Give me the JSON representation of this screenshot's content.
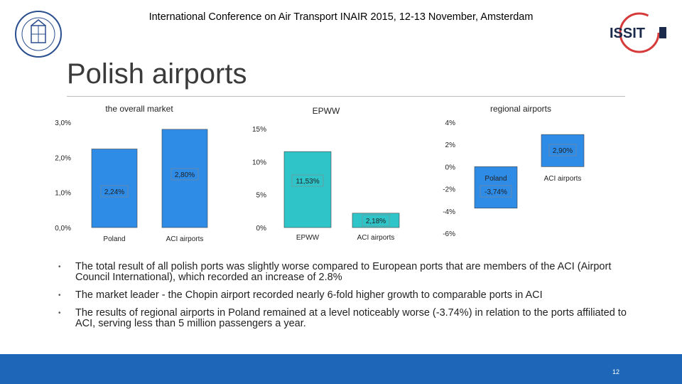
{
  "slide": {
    "title": "Polish airports",
    "footer_text": "International Conference on Air Transport INAIR 2015, 12-13 November, Amsterdam",
    "page_number": "12",
    "logo_right_text": "ISSIT",
    "bullets": [
      "The total result of all polish ports was slightly worse compared to European ports that are members of the ACI (Airport Council International), which recorded an increase of 2.8%",
      "The market leader - the Chopin airport recorded nearly 6-fold higher growth to comparable ports in ACI",
      "The results of regional airports in Poland remained at a level noticeably worse (-3.74%) in relation to the ports affiliated to ACI, serving less than 5 million passengers a year."
    ]
  },
  "colors": {
    "bar_blue": "#2e8be6",
    "bar_teal": "#2ec4c8",
    "footer": "#1e67b8",
    "bar_edge": "#444444"
  },
  "chart_data": [
    {
      "type": "bar",
      "title": "the overall market",
      "categories": [
        "Poland",
        "ACI airports"
      ],
      "values": [
        2.24,
        2.8
      ],
      "data_labels": [
        "2,24%",
        "2,80%"
      ],
      "ylim": [
        0,
        3
      ],
      "yticks": [
        "0,0%",
        "1,0%",
        "2,0%",
        "3,0%"
      ]
    },
    {
      "type": "bar",
      "title": "EPWW",
      "categories": [
        "EPWW",
        "ACI airports"
      ],
      "values": [
        11.53,
        2.18
      ],
      "data_labels": [
        "11,53%",
        "2,18%"
      ],
      "ylim": [
        0,
        15
      ],
      "yticks": [
        "0%",
        "5%",
        "10%",
        "15%"
      ]
    },
    {
      "type": "bar",
      "title": "regional airports",
      "categories": [
        "Poland",
        "ACI airports"
      ],
      "values": [
        -3.74,
        2.9
      ],
      "data_labels": [
        "-3,74%",
        "2,90%"
      ],
      "ylim": [
        -6,
        4
      ],
      "yticks": [
        "-6%",
        "-4%",
        "-2%",
        "0%",
        "2%",
        "4%"
      ]
    }
  ]
}
